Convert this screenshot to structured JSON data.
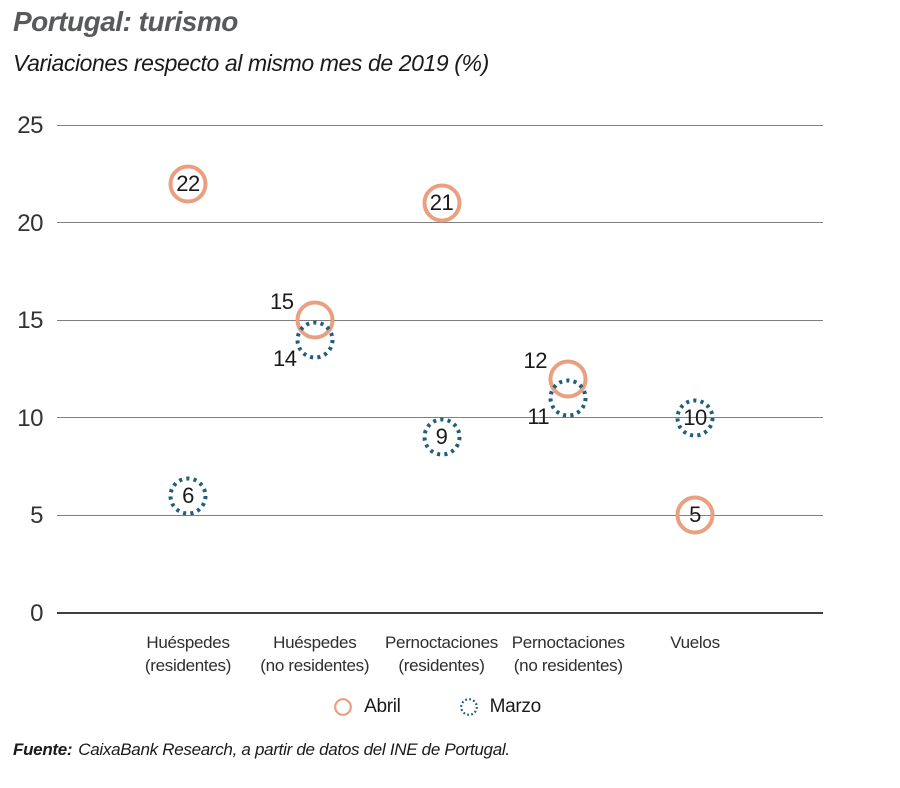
{
  "chart_data": {
    "type": "scatter",
    "title": "Portugal: turismo",
    "subtitle": "Variaciones respecto al mismo mes de 2019 (%)",
    "categories": [
      [
        "Huéspedes",
        "(residentes)"
      ],
      [
        "Huéspedes",
        "(no residentes)"
      ],
      [
        "Pernoctaciones",
        "(residentes)"
      ],
      [
        "Pernoctaciones",
        "(no residentes)"
      ],
      [
        "Vuelos"
      ]
    ],
    "ylim": [
      0,
      25
    ],
    "yticks": [
      0,
      5,
      10,
      15,
      20,
      25
    ],
    "grid": true,
    "legend_position": "bottom",
    "series": [
      {
        "name": "Abril",
        "marker": "solid-circle",
        "color": "#E8A081",
        "values": [
          22,
          15,
          21,
          12,
          5
        ],
        "label_positions": [
          "inside",
          "left-above",
          "inside",
          "left-above",
          "inside"
        ]
      },
      {
        "name": "Marzo",
        "marker": "dotted-circle",
        "color": "#215E7C",
        "values": [
          6,
          14,
          9,
          11,
          10
        ],
        "label_positions": [
          "inside",
          "left-below",
          "inside",
          "left-below",
          "inside"
        ]
      }
    ]
  },
  "colors": {
    "grid": "#7F7F7F",
    "zero_line": "#3F3F3F",
    "title": "#58595B",
    "text": "#1A1A1A"
  },
  "source": {
    "label": "Fuente:",
    "text": "CaixaBank Research, a partir de datos del INE de Portugal."
  }
}
